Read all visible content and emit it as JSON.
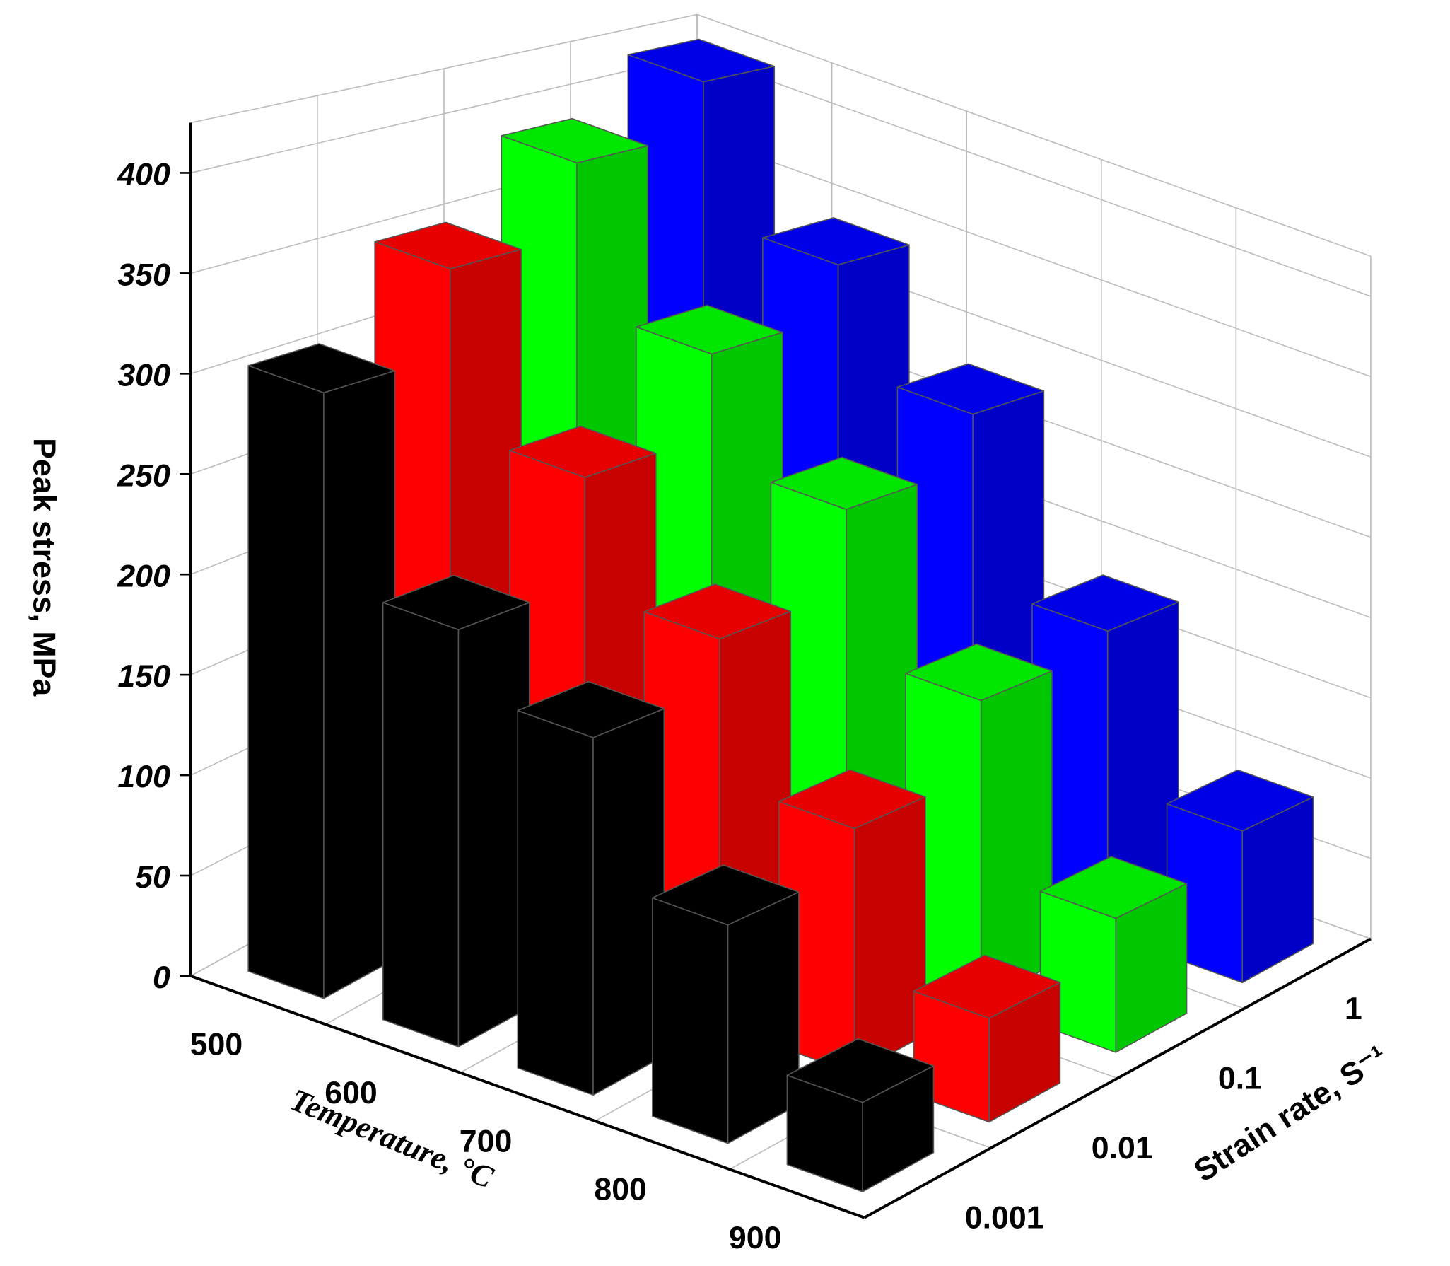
{
  "chart_data": {
    "type": "bar3d",
    "zlabel": "Peak stress, MPa",
    "xlabel": "Temperature, °C",
    "ylabel": "Strain rate, S⁻¹",
    "categories": [
      "500",
      "600",
      "700",
      "800",
      "900"
    ],
    "series": [
      {
        "name": "0.001",
        "color": "#000000",
        "values": [
          305,
          210,
          180,
          110,
          45
        ]
      },
      {
        "name": "0.01",
        "color": "#ff0000",
        "values": [
          350,
          265,
          205,
          130,
          55
        ]
      },
      {
        "name": "0.1",
        "color": "#00ff00",
        "values": [
          390,
          310,
          250,
          170,
          75
        ]
      },
      {
        "name": "1",
        "color": "#0000ff",
        "values": [
          420,
          340,
          280,
          180,
          90
        ]
      }
    ],
    "ylim": [
      0,
      425
    ],
    "yticks": [
      0,
      50,
      100,
      150,
      200,
      250,
      300,
      350,
      400
    ],
    "grid": true
  }
}
